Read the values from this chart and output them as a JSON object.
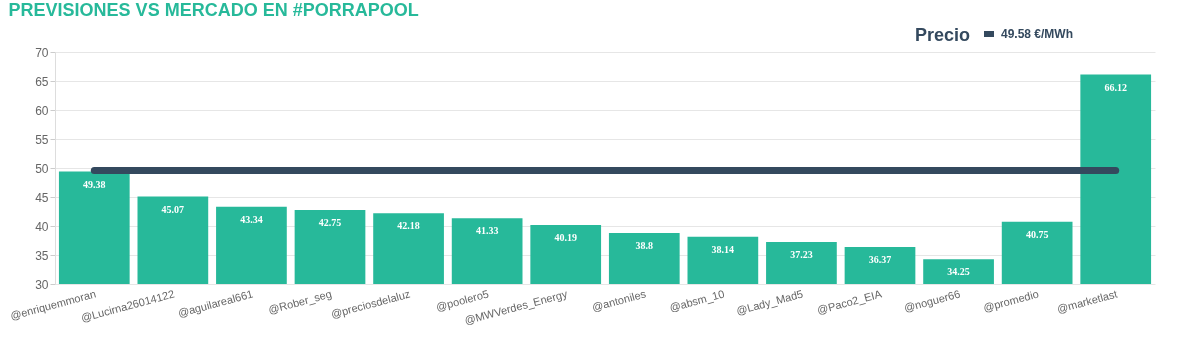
{
  "chart_data": {
    "type": "bar",
    "title": "PREVISIONES VS MERCADO EN #PORRAPOOL",
    "categories": [
      "@enriquemmoran",
      "@Lucirna26014122",
      "@aguilareal661",
      "@Rober_seg",
      "@preciosdelaluz",
      "@poolero5",
      "@MWVerdes_Energy",
      "@antoniles",
      "@absm_10",
      "@Lady_Mad5",
      "@Paco2_EIA",
      "@noguer66",
      "@promedio",
      "@marketlast"
    ],
    "values": [
      49.38,
      45.07,
      43.34,
      42.75,
      42.18,
      41.33,
      40.19,
      38.8,
      38.14,
      37.23,
      36.37,
      34.25,
      40.75,
      66.12
    ],
    "color": "#27b99a",
    "data_labels": true,
    "ylim": [
      30,
      70
    ],
    "yticks": [
      30,
      35,
      40,
      45,
      50,
      55,
      60,
      65,
      70
    ],
    "grid": "y",
    "legend_title": "Precio",
    "legend": "top right",
    "ref_lines": [
      {
        "axis": "y",
        "value": 49.58,
        "label": "49.58 €/MWh",
        "color": "#34495e"
      }
    ]
  }
}
